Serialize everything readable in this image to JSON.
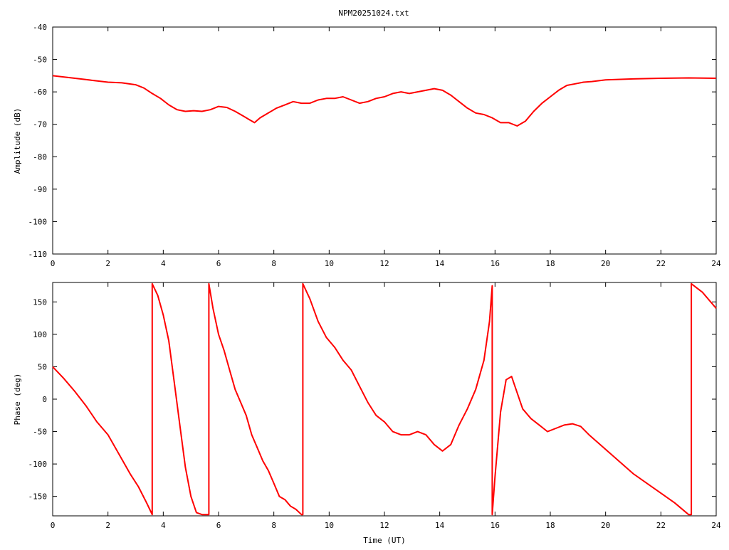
{
  "chart_data": [
    {
      "type": "line",
      "title": "NPM20251024.txt",
      "xlabel": "",
      "ylabel": "Amplitude (dB)",
      "xlim": [
        0,
        24
      ],
      "ylim": [
        -110,
        -40
      ],
      "x_ticks": [
        "0",
        "2",
        "4",
        "6",
        "8",
        "10",
        "12",
        "14",
        "16",
        "18",
        "20",
        "22",
        "24"
      ],
      "y_ticks": [
        "-40",
        "-50",
        "-60",
        "-70",
        "-80",
        "-90",
        "-100",
        "-110"
      ],
      "grid": false,
      "line_color": "#ff0000",
      "series": [
        {
          "x": [
            0,
            0.5,
            1,
            1.5,
            2,
            2.5,
            3,
            3.3,
            3.6,
            3.9,
            4.2,
            4.5,
            4.8,
            5.1,
            5.4,
            5.7,
            6.0,
            6.3,
            6.6,
            6.9,
            7.1,
            7.3,
            7.5,
            7.8,
            8.1,
            8.4,
            8.7,
            9.0,
            9.3,
            9.6,
            9.9,
            10.2,
            10.5,
            10.8,
            11.1,
            11.4,
            11.7,
            12.0,
            12.3,
            12.6,
            12.9,
            13.2,
            13.5,
            13.8,
            14.1,
            14.4,
            14.7,
            15.0,
            15.3,
            15.6,
            15.9,
            16.2,
            16.5,
            16.8,
            17.1,
            17.4,
            17.7,
            18.0,
            18.3,
            18.6,
            18.9,
            19.2,
            19.5,
            20.0,
            21.0,
            22.0,
            23.0,
            24.0
          ],
          "y": [
            -55,
            -55.5,
            -56,
            -56.5,
            -57,
            -57.2,
            -57.8,
            -58.8,
            -60.5,
            -62,
            -64,
            -65.5,
            -66,
            -65.8,
            -66,
            -65.5,
            -64.5,
            -64.8,
            -66,
            -67.5,
            -68.5,
            -69.5,
            -68,
            -66.5,
            -65,
            -64,
            -63,
            -63.5,
            -63.5,
            -62.5,
            -62,
            -62,
            -61.5,
            -62.5,
            -63.5,
            -63,
            -62,
            -61.5,
            -60.5,
            -60,
            -60.5,
            -60,
            -59.5,
            -59,
            -59.5,
            -61,
            -63,
            -65,
            -66.5,
            -67,
            -68,
            -69.5,
            -69.5,
            -70.5,
            -69,
            -66,
            -63.5,
            -61.5,
            -59.5,
            -58,
            -57.5,
            -57,
            -56.8,
            -56.3,
            -56,
            -55.8,
            -55.7,
            -55.8
          ]
        }
      ]
    },
    {
      "type": "line",
      "title": "",
      "xlabel": "Time (UT)",
      "ylabel": "Phase (deg)",
      "xlim": [
        0,
        24
      ],
      "ylim": [
        -180,
        180
      ],
      "x_ticks": [
        "0",
        "2",
        "4",
        "6",
        "8",
        "10",
        "12",
        "14",
        "16",
        "18",
        "20",
        "22",
        "24"
      ],
      "y_ticks": [
        "150",
        "100",
        "50",
        "0",
        "-50",
        "-100",
        "-150"
      ],
      "grid": false,
      "line_color": "#ff0000",
      "series": [
        {
          "x": [
            0,
            0.4,
            0.8,
            1.2,
            1.6,
            2.0,
            2.4,
            2.8,
            3.1,
            3.4,
            3.6,
            3.6,
            3.8,
            4.0,
            4.2,
            4.4,
            4.6,
            4.8,
            5.0,
            5.2,
            5.4,
            5.6,
            5.65,
            5.65,
            5.8,
            6.0,
            6.2,
            6.4,
            6.6,
            6.8,
            7.0,
            7.2,
            7.4,
            7.6,
            7.8,
            8.0,
            8.2,
            8.4,
            8.6,
            8.8,
            9.0,
            9.05,
            9.05,
            9.3,
            9.6,
            9.9,
            10.2,
            10.5,
            10.8,
            11.1,
            11.4,
            11.7,
            12.0,
            12.3,
            12.6,
            12.9,
            13.2,
            13.5,
            13.8,
            14.1,
            14.4,
            14.7,
            15.0,
            15.3,
            15.6,
            15.8,
            15.9,
            15.9,
            16.0,
            16.2,
            16.4,
            16.6,
            16.8,
            17.0,
            17.3,
            17.6,
            17.9,
            18.2,
            18.5,
            18.8,
            19.1,
            19.4,
            19.8,
            20.2,
            20.6,
            21.0,
            21.5,
            22.0,
            22.5,
            23.0,
            23.1,
            23.1,
            23.5,
            24.0
          ],
          "y": [
            50,
            32,
            12,
            -10,
            -35,
            -55,
            -85,
            -115,
            -135,
            -160,
            -178,
            178,
            160,
            130,
            90,
            25,
            -40,
            -105,
            -150,
            -175,
            -178,
            -178,
            -178,
            178,
            140,
            100,
            75,
            45,
            15,
            -5,
            -25,
            -55,
            -75,
            -95,
            -110,
            -130,
            -150,
            -155,
            -165,
            -170,
            -178,
            -178,
            178,
            155,
            120,
            95,
            80,
            60,
            45,
            20,
            -5,
            -25,
            -35,
            -50,
            -55,
            -55,
            -50,
            -55,
            -70,
            -80,
            -70,
            -40,
            -15,
            15,
            60,
            120,
            175,
            -178,
            -120,
            -20,
            30,
            35,
            10,
            -15,
            -30,
            -40,
            -50,
            -45,
            -40,
            -38,
            -42,
            -55,
            -70,
            -85,
            -100,
            -115,
            -130,
            -145,
            -160,
            -178,
            -178,
            178,
            165,
            140
          ]
        }
      ]
    }
  ]
}
